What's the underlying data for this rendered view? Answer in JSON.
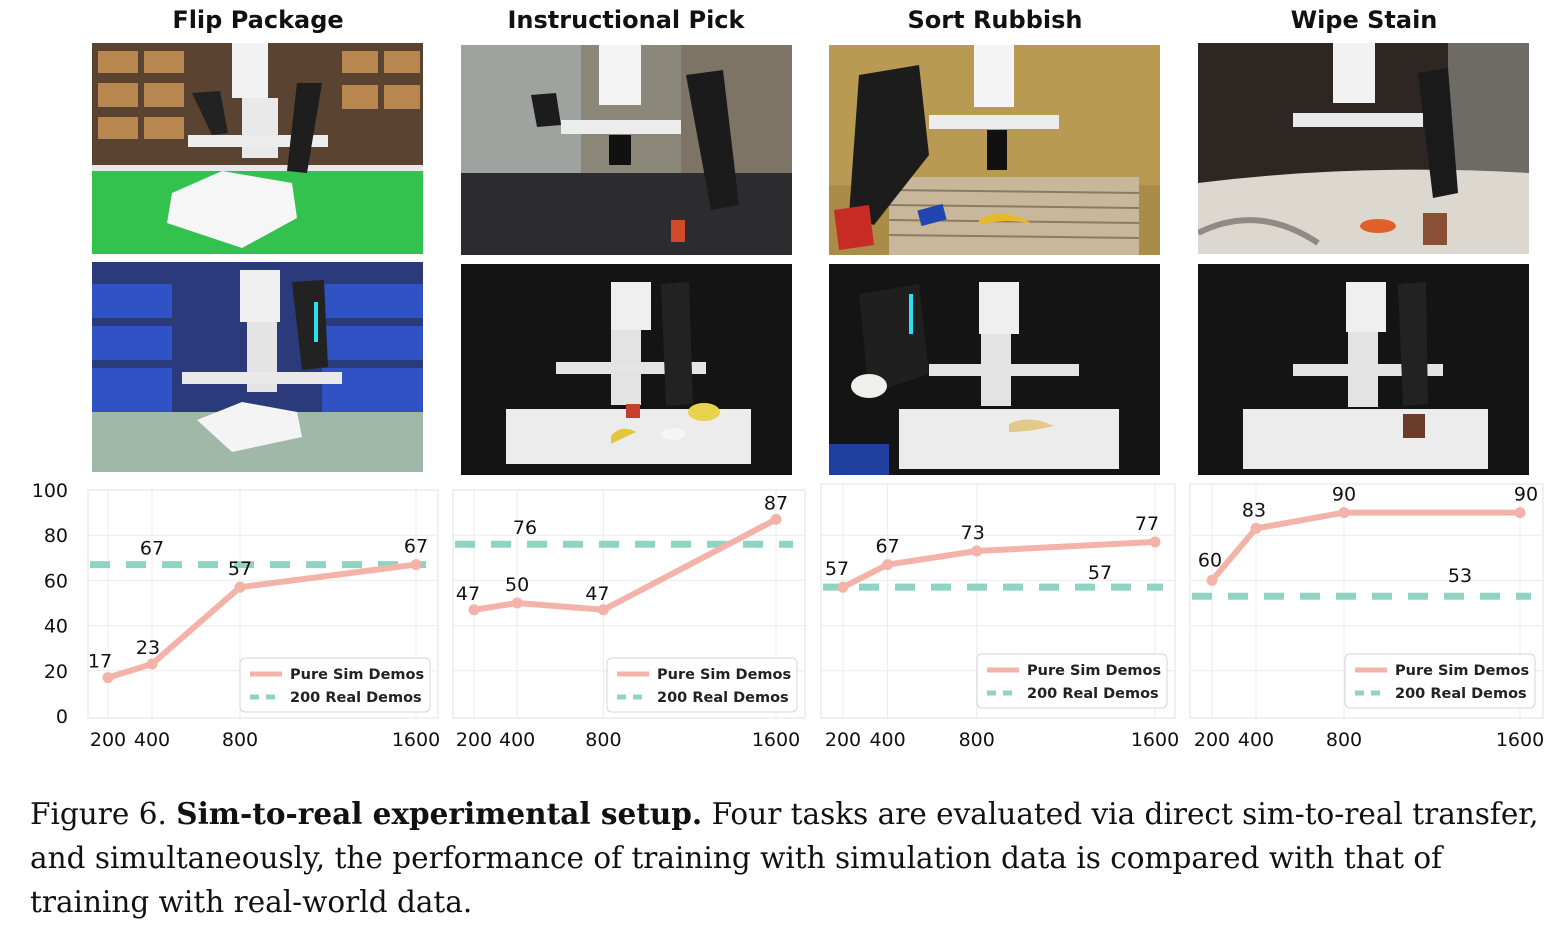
{
  "tasks": [
    {
      "title": "Flip Package"
    },
    {
      "title": "Instructional Pick"
    },
    {
      "title": "Sort Rubbish"
    },
    {
      "title": "Wipe Stain"
    }
  ],
  "photos": {
    "sim_row": [
      {
        "scene": "simulated robot flipping a white package on a green conveyor"
      },
      {
        "scene": "simulated robot arm over a dark conveyor belt"
      },
      {
        "scene": "simulated robot over a striped table with banana and can"
      },
      {
        "scene": "simulated robot over a marble table with orange stain"
      }
    ],
    "real_row": [
      {
        "scene": "real robot flipping a white package near blue bins"
      },
      {
        "scene": "real robot over white table with cube, banana, mouse and bowl"
      },
      {
        "scene": "real robot holding can over white table with banana"
      },
      {
        "scene": "real robot wiping stain on white table"
      }
    ]
  },
  "legend": {
    "sim": "Pure Sim Demos",
    "real": "200 Real Demos"
  },
  "colors": {
    "sim": "#f4b3a9",
    "real": "#8fd3c3",
    "grid": "#ebebeb"
  },
  "chart_data": [
    {
      "type": "line",
      "title": "Flip Package",
      "x": [
        200,
        400,
        800,
        1600
      ],
      "series": [
        {
          "name": "Pure Sim Demos",
          "values": [
            17,
            23,
            57,
            67
          ]
        },
        {
          "name": "200 Real Demos",
          "values": [
            67,
            67,
            67,
            67
          ],
          "label": "67"
        }
      ],
      "ylim": [
        0,
        100
      ],
      "yticks": [
        0,
        20,
        40,
        60,
        80,
        100
      ],
      "legend_position": "bottom-right"
    },
    {
      "type": "line",
      "title": "Instructional Pick",
      "x": [
        200,
        400,
        800,
        1600
      ],
      "series": [
        {
          "name": "Pure Sim Demos",
          "values": [
            47,
            50,
            47,
            87
          ]
        },
        {
          "name": "200 Real Demos",
          "values": [
            76,
            76,
            76,
            76
          ],
          "label": "76"
        }
      ],
      "ylim": [
        0,
        100
      ],
      "legend_position": "bottom-right"
    },
    {
      "type": "line",
      "title": "Sort Rubbish",
      "x": [
        200,
        400,
        800,
        1600
      ],
      "series": [
        {
          "name": "Pure Sim Demos",
          "values": [
            57,
            67,
            73,
            77
          ]
        },
        {
          "name": "200 Real Demos",
          "values": [
            57,
            57,
            57,
            57
          ],
          "label": "57"
        }
      ],
      "ylim": [
        0,
        100
      ],
      "legend_position": "bottom-right"
    },
    {
      "type": "line",
      "title": "Wipe Stain",
      "x": [
        200,
        400,
        800,
        1600
      ],
      "series": [
        {
          "name": "Pure Sim Demos",
          "values": [
            60,
            83,
            90,
            90
          ]
        },
        {
          "name": "200 Real Demos",
          "values": [
            53,
            53,
            53,
            53
          ],
          "label": "53"
        }
      ],
      "ylim": [
        0,
        100
      ],
      "legend_position": "bottom-right"
    }
  ],
  "caption": {
    "label": "Figure 6.",
    "bold": "Sim-to-real experimental setup.",
    "text": "Four tasks are evaluated via direct sim-to-real transfer, and simultaneously, the performance of training with simulation data is compared with that of training with real-world data."
  }
}
